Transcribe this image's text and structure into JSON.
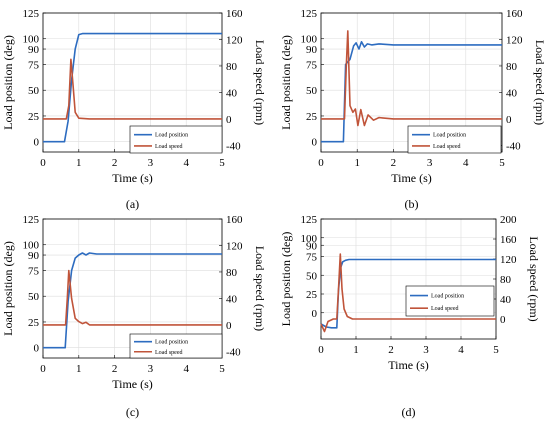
{
  "colors": {
    "position": "#2d6cc0",
    "speed": "#c0543a",
    "grid": "#dddddd"
  },
  "chart_data": [
    {
      "type": "line",
      "panel_label": "(a)",
      "xlabel": "Time (s)",
      "ylabel_left": "Load position (deg)",
      "ylabel_right": "Load speed (rpm)",
      "xlim": [
        0,
        5
      ],
      "xticks": [
        "0",
        "1",
        "2",
        "3",
        "4",
        "5"
      ],
      "ylim_left": [
        -10,
        125
      ],
      "yticks_left": [
        "0",
        "25",
        "50",
        "75",
        "90",
        "100",
        "125"
      ],
      "ytick_vals_left": [
        0,
        25,
        50,
        75,
        90,
        100,
        125
      ],
      "ylim_right": [
        -50,
        160
      ],
      "yticks_right": [
        "-40",
        "0",
        "40",
        "80",
        "120",
        "160"
      ],
      "ytick_vals_right": [
        -40,
        0,
        40,
        80,
        120,
        160
      ],
      "legend": [
        "Load position",
        "Load speed"
      ],
      "legend_pos": "bottom-right",
      "grid": true,
      "series": [
        {
          "name": "Load position",
          "axis": "left",
          "x": [
            0,
            0.6,
            0.7,
            0.8,
            0.9,
            1.0,
            1.1,
            5.0
          ],
          "y": [
            0,
            0,
            20,
            60,
            90,
            104,
            105,
            105
          ]
        },
        {
          "name": "Load speed",
          "axis": "right",
          "x": [
            0,
            0.65,
            0.72,
            0.78,
            0.84,
            0.9,
            1.0,
            1.3,
            5.0
          ],
          "y": [
            0,
            0,
            20,
            90,
            50,
            10,
            1,
            0,
            0
          ]
        }
      ]
    },
    {
      "type": "line",
      "panel_label": "(b)",
      "xlabel": "Time (s)",
      "ylabel_left": "Load position (deg)",
      "ylabel_right": "Load speed (rpm)",
      "xlim": [
        0,
        5
      ],
      "xticks": [
        "0",
        "1",
        "2",
        "3",
        "4",
        "5"
      ],
      "ylim_left": [
        -10,
        125
      ],
      "yticks_left": [
        "0",
        "25",
        "50",
        "75",
        "90",
        "100",
        "125"
      ],
      "ytick_vals_left": [
        0,
        25,
        50,
        75,
        90,
        100,
        125
      ],
      "ylim_right": [
        -50,
        160
      ],
      "yticks_right": [
        "-40",
        "0",
        "40",
        "80",
        "120",
        "160"
      ],
      "ytick_vals_right": [
        -40,
        0,
        40,
        80,
        120,
        160
      ],
      "legend": [
        "Load position",
        "Load speed"
      ],
      "legend_pos": "bottom-right",
      "grid": true,
      "series": [
        {
          "name": "Load position",
          "axis": "left",
          "x": [
            0,
            0.62,
            0.68,
            0.8,
            0.9,
            0.97,
            1.05,
            1.12,
            1.2,
            1.28,
            1.4,
            1.6,
            2.0,
            5.0
          ],
          "y": [
            0,
            0,
            75,
            80,
            93,
            96,
            90,
            97,
            92,
            95,
            94,
            95,
            94,
            94
          ]
        },
        {
          "name": "Load speed",
          "axis": "right",
          "x": [
            0,
            0.65,
            0.7,
            0.74,
            0.8,
            0.88,
            0.95,
            1.02,
            1.1,
            1.2,
            1.3,
            1.45,
            1.6,
            2.0,
            5.0
          ],
          "y": [
            0,
            0,
            80,
            133,
            20,
            10,
            15,
            -10,
            14,
            -10,
            6,
            -2,
            2,
            0,
            0
          ]
        }
      ]
    },
    {
      "type": "line",
      "panel_label": "(c)",
      "xlabel": "Time (s)",
      "ylabel_left": "Load position (deg)",
      "ylabel_right": "Load speed (rpm)",
      "xlim": [
        0,
        5
      ],
      "xticks": [
        "0",
        "1",
        "2",
        "3",
        "4",
        "5"
      ],
      "ylim_left": [
        -10,
        125
      ],
      "yticks_left": [
        "0",
        "25",
        "50",
        "75",
        "90",
        "100",
        "125"
      ],
      "ytick_vals_left": [
        0,
        25,
        50,
        75,
        90,
        100,
        125
      ],
      "ylim_right": [
        -50,
        160
      ],
      "yticks_right": [
        "-40",
        "0",
        "40",
        "80",
        "120",
        "160"
      ],
      "ytick_vals_right": [
        -40,
        0,
        40,
        80,
        120,
        160
      ],
      "legend": [
        "Load position",
        "Load speed"
      ],
      "legend_pos": "bottom-right",
      "grid": true,
      "series": [
        {
          "name": "Load position",
          "axis": "left",
          "x": [
            0,
            0.62,
            0.7,
            0.8,
            0.9,
            1.0,
            1.1,
            1.2,
            1.3,
            1.5,
            5.0
          ],
          "y": [
            0,
            0,
            45,
            75,
            87,
            90,
            92,
            90,
            92,
            91,
            91
          ]
        },
        {
          "name": "Load speed",
          "axis": "right",
          "x": [
            0,
            0.63,
            0.68,
            0.72,
            0.8,
            0.9,
            1.0,
            1.1,
            1.2,
            1.3,
            1.5,
            5.0
          ],
          "y": [
            0,
            0,
            40,
            82,
            40,
            10,
            5,
            2,
            4,
            0,
            0,
            0
          ]
        }
      ]
    },
    {
      "type": "line",
      "panel_label": "(d)",
      "xlabel": "Time (s)",
      "ylabel_left": "Load position (deg)",
      "ylabel_right": "Load speed (rpm)",
      "xlim": [
        0,
        5
      ],
      "xticks": [
        "0",
        "1",
        "2",
        "3",
        "4",
        "5"
      ],
      "ylim_left": [
        -35,
        125
      ],
      "yticks_left": [
        "0",
        "25",
        "50",
        "75",
        "90",
        "100",
        "125"
      ],
      "ytick_vals_left": [
        0,
        25,
        50,
        75,
        90,
        100,
        125
      ],
      "ylim_right": [
        -40,
        200
      ],
      "yticks_right": [
        "0",
        "40",
        "80",
        "120",
        "160",
        "200"
      ],
      "ytick_vals_right": [
        0,
        40,
        80,
        120,
        160,
        200
      ],
      "legend": [
        "Load position",
        "Load speed"
      ],
      "legend_pos": "right",
      "grid": true,
      "series": [
        {
          "name": "Load position",
          "axis": "left",
          "x": [
            0,
            0.15,
            0.3,
            0.45,
            0.5,
            0.56,
            0.62,
            0.7,
            0.8,
            1.0,
            5.0
          ],
          "y": [
            -15,
            -19,
            -20,
            -20,
            30,
            60,
            68,
            70,
            71,
            71,
            71
          ]
        },
        {
          "name": "Load speed",
          "axis": "right",
          "x": [
            0,
            0.1,
            0.2,
            0.35,
            0.45,
            0.5,
            0.55,
            0.6,
            0.66,
            0.75,
            0.9,
            5.0
          ],
          "y": [
            -10,
            -25,
            -5,
            0,
            0,
            60,
            130,
            60,
            20,
            5,
            0,
            0
          ]
        }
      ]
    }
  ]
}
